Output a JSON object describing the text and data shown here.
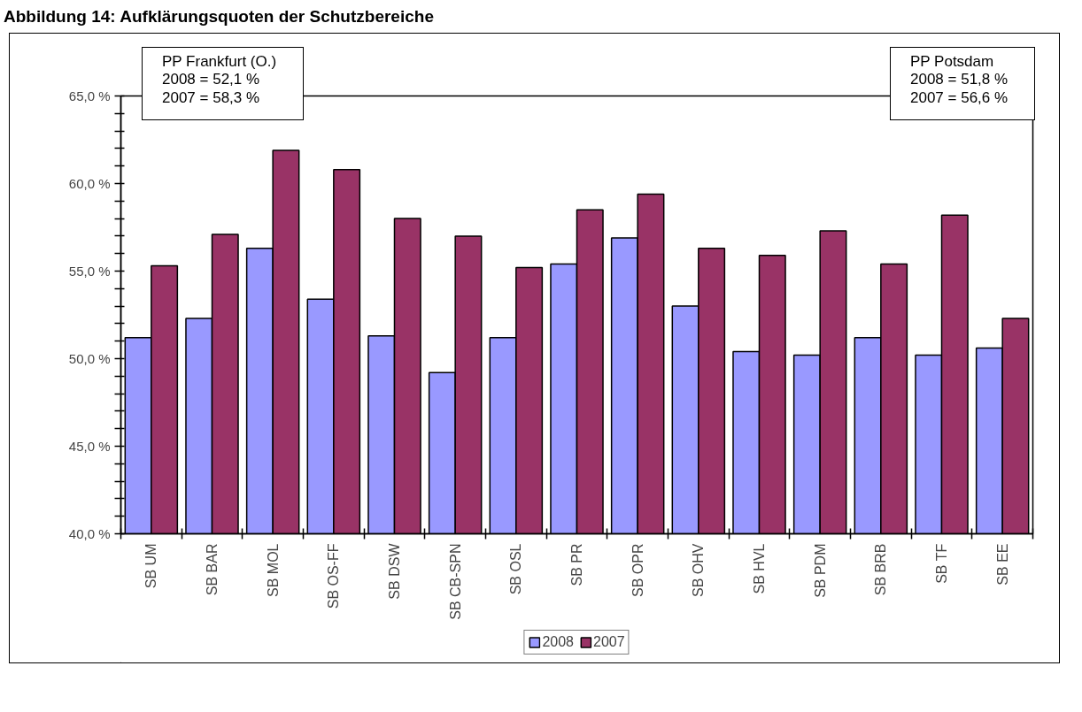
{
  "chart_data": {
    "type": "bar",
    "title": "Abbildung 14: Aufklärungsquoten der Schutzbereiche",
    "categories": [
      "SB UM",
      "SB BAR",
      "SB MOL",
      "SB OS-FF",
      "SB DSW",
      "SB CB-SPN",
      "SB OSL",
      "SB PR",
      "SB OPR",
      "SB OHV",
      "SB HVL",
      "SB PDM",
      "SB BRB",
      "SB TF",
      "SB EE"
    ],
    "series": [
      {
        "name": "2008",
        "color": "#9999ff",
        "values": [
          51.2,
          52.3,
          56.3,
          53.4,
          51.3,
          49.2,
          51.2,
          55.4,
          56.9,
          53.0,
          50.4,
          50.2,
          51.2,
          50.2,
          50.6
        ]
      },
      {
        "name": "2007",
        "color": "#993366",
        "values": [
          55.3,
          57.1,
          61.9,
          60.8,
          58.0,
          57.0,
          55.2,
          58.5,
          59.4,
          56.3,
          55.9,
          57.3,
          55.4,
          58.2,
          52.3
        ]
      }
    ],
    "ylim": [
      40,
      65
    ],
    "yticks": [
      {
        "value": 40,
        "label": "40,0 %"
      },
      {
        "value": 41,
        "label": null
      },
      {
        "value": 42,
        "label": null
      },
      {
        "value": 43,
        "label": null
      },
      {
        "value": 44,
        "label": null
      },
      {
        "value": 45,
        "label": "45,0 %"
      },
      {
        "value": 46,
        "label": null
      },
      {
        "value": 47,
        "label": null
      },
      {
        "value": 48,
        "label": null
      },
      {
        "value": 49,
        "label": null
      },
      {
        "value": 50,
        "label": "50,0 %"
      },
      {
        "value": 51,
        "label": null
      },
      {
        "value": 52,
        "label": null
      },
      {
        "value": 53,
        "label": null
      },
      {
        "value": 54,
        "label": null
      },
      {
        "value": 55,
        "label": "55,0 %"
      },
      {
        "value": 56,
        "label": null
      },
      {
        "value": 57,
        "label": null
      },
      {
        "value": 58,
        "label": null
      },
      {
        "value": 59,
        "label": null
      },
      {
        "value": 60,
        "label": "60,0 %"
      },
      {
        "value": 61,
        "label": null
      },
      {
        "value": 62,
        "label": null
      },
      {
        "value": 63,
        "label": null
      },
      {
        "value": 64,
        "label": null
      },
      {
        "value": 65,
        "label": "65,0 %"
      }
    ],
    "annotations": [
      "PP Frankfurt (O.)\n2008 = 52,1 %\n2007 = 58,3 %",
      "PP Potsdam\n2008 = 51,8 %\n2007 = 56,6 %"
    ],
    "legend": "bottom",
    "grid": false
  }
}
